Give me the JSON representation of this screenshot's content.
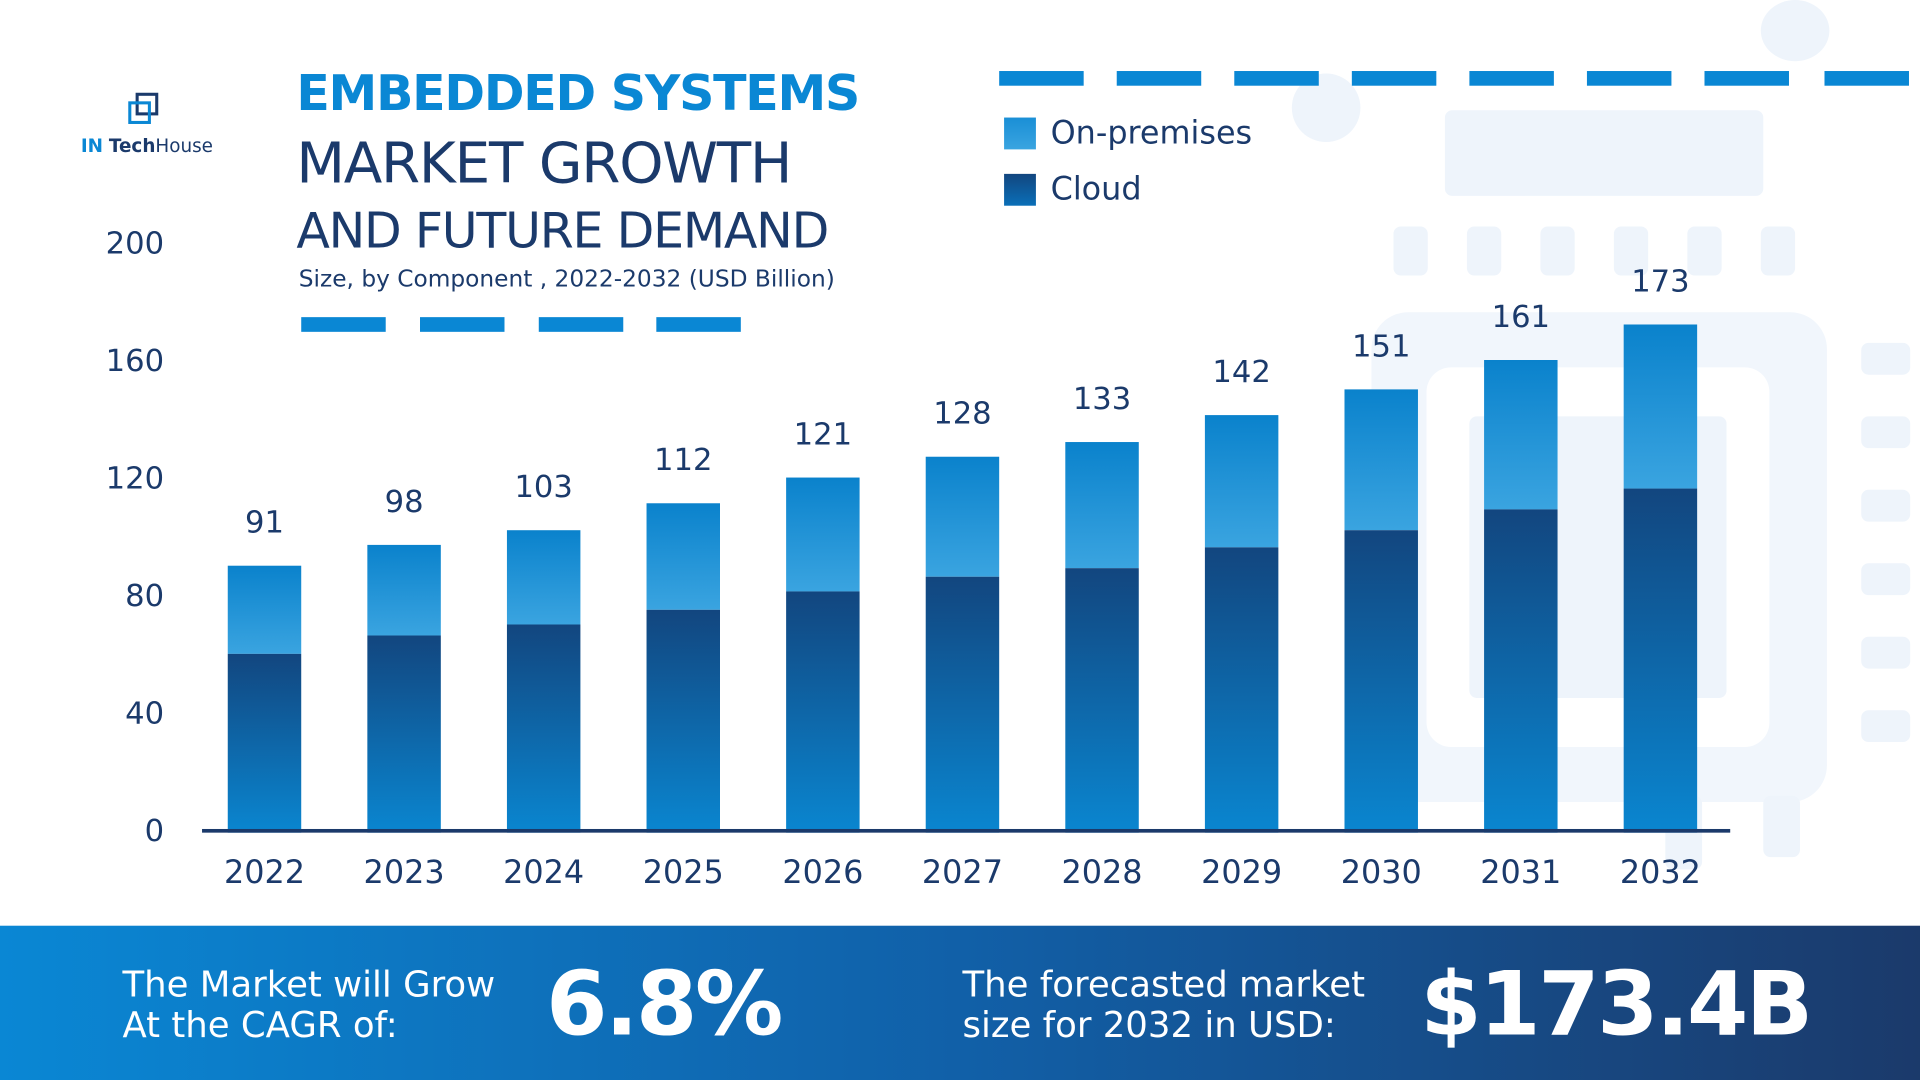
{
  "brand": {
    "logo_text_in": "IN",
    "logo_text_tech": "Tech",
    "logo_text_house": "House"
  },
  "header": {
    "title_line1": "EMBEDDED SYSTEMS",
    "title_line2": "MARKET GROWTH",
    "title_line3": "AND FUTURE DEMAND",
    "subtitle": "Size, by Component , 2022-2032 (USD Billion)"
  },
  "colors": {
    "on_premises": "#2a9ad9",
    "cloud": "#12467f",
    "accent": "#0a87d4",
    "text": "#1b3a6b"
  },
  "chart_data": {
    "type": "bar",
    "stacked": true,
    "categories": [
      "2022",
      "2023",
      "2024",
      "2025",
      "2026",
      "2027",
      "2028",
      "2029",
      "2030",
      "2031",
      "2032"
    ],
    "series": [
      {
        "name": "Cloud",
        "values": [
          61,
          67,
          71,
          76,
          82,
          87,
          90,
          97,
          103,
          110,
          117
        ]
      },
      {
        "name": "On-premises",
        "values": [
          30,
          31,
          32,
          36,
          39,
          41,
          43,
          45,
          48,
          51,
          56
        ]
      }
    ],
    "totals": [
      "91",
      "98",
      "103",
      "112",
      "121",
      "128",
      "133",
      "142",
      "151",
      "161",
      "173"
    ],
    "total_values": [
      91,
      98,
      103,
      112,
      121,
      128,
      133,
      142,
      151,
      161,
      173
    ],
    "yticks": [
      "0",
      "40",
      "80",
      "120",
      "160",
      "200"
    ],
    "ylim": [
      0,
      200
    ],
    "legend_position": "top-right",
    "grid": false
  },
  "footer": {
    "cagr_label_line1": "The Market will Grow",
    "cagr_label_line2": "At the CAGR of:",
    "cagr_value": "6.8%",
    "forecast_label_line1": "The forecasted market",
    "forecast_label_line2": "size for 2032 in USD:",
    "forecast_value": "$173.4B"
  }
}
